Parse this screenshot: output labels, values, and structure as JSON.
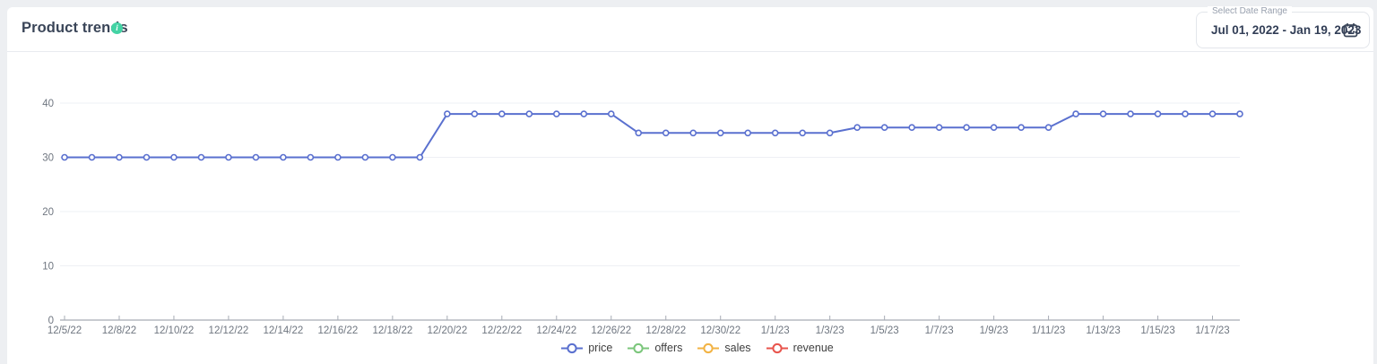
{
  "page": {
    "background": "#edeff2",
    "card_background": "#ffffff"
  },
  "header": {
    "title": "Product trends",
    "info_icon": "info-icon",
    "info_icon_color": "#43d3a4",
    "info_icon_glyph": "i"
  },
  "date_range": {
    "label": "Select Date Range",
    "value": "Jul 01, 2022 - Jan 19, 2023",
    "calendar_icon": "calendar-icon",
    "icon_color": "#3a4558"
  },
  "chart_data": {
    "type": "line",
    "title": "Product trends",
    "xlabel": "",
    "ylabel": "",
    "x": [
      "12/5/22",
      "12/7/22",
      "12/8/22",
      "12/9/22",
      "12/10/22",
      "12/11/22",
      "12/12/22",
      "12/13/22",
      "12/14/22",
      "12/15/22",
      "12/16/22",
      "12/17/22",
      "12/18/22",
      "12/19/22",
      "12/20/22",
      "12/21/22",
      "12/22/22",
      "12/23/22",
      "12/24/22",
      "12/25/22",
      "12/26/22",
      "12/27/22",
      "12/28/22",
      "12/29/22",
      "12/30/22",
      "12/31/22",
      "1/1/23",
      "1/2/23",
      "1/3/23",
      "1/4/23",
      "1/5/23",
      "1/6/23",
      "1/7/23",
      "1/8/23",
      "1/9/23",
      "1/10/23",
      "1/11/23",
      "1/12/23",
      "1/13/23",
      "1/14/23",
      "1/15/23",
      "1/16/23",
      "1/17/23",
      "1/18/23"
    ],
    "x_tick_label_every": 2,
    "x_tick_labels": [
      "12/5/22",
      "12/8/22",
      "12/10/22",
      "12/12/22",
      "12/14/22",
      "12/16/22",
      "12/18/22",
      "12/20/22",
      "12/22/22",
      "12/24/22",
      "12/26/22",
      "12/28/22",
      "12/30/22",
      "1/1/23",
      "1/3/23",
      "1/5/23",
      "1/7/23",
      "1/9/23",
      "1/11/23",
      "1/13/23",
      "1/15/23",
      "1/17/23"
    ],
    "y_ticks": [
      0,
      10,
      20,
      30,
      40
    ],
    "ylim": [
      0,
      45
    ],
    "grid": "horizontal",
    "marker": "hollow-circle",
    "legend_position": "bottom-center",
    "series": [
      {
        "name": "price",
        "color": "#5a70cf",
        "values": [
          30,
          30,
          30,
          30,
          30,
          30,
          30,
          30,
          30,
          30,
          30,
          30,
          30,
          30,
          38,
          38,
          38,
          38,
          38,
          38,
          38,
          34.5,
          34.5,
          34.5,
          34.5,
          34.5,
          34.5,
          34.5,
          34.5,
          35.5,
          35.5,
          35.5,
          35.5,
          35.5,
          35.5,
          35.5,
          35.5,
          38,
          38,
          38,
          38,
          38,
          38,
          38
        ]
      },
      {
        "name": "offers",
        "color": "#7bc67b",
        "values": []
      },
      {
        "name": "sales",
        "color": "#f2b344",
        "values": []
      },
      {
        "name": "revenue",
        "color": "#e8554d",
        "values": []
      }
    ],
    "axis_colors": {
      "labels": "#6f7680",
      "gridline": "#eef0f4",
      "baseline": "#a7acb5"
    }
  }
}
